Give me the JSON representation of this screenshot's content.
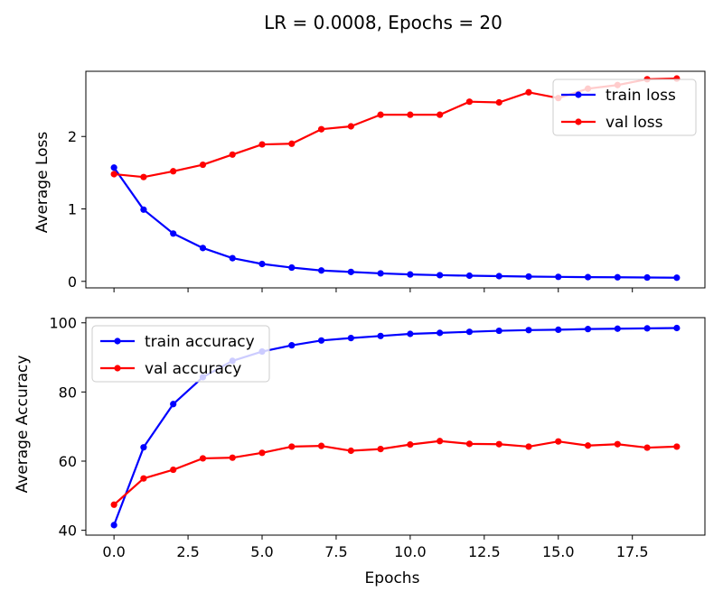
{
  "figure": {
    "title": "LR = 0.0008, Epochs = 20"
  },
  "chart_data": [
    {
      "type": "line",
      "title": "",
      "xlabel": "",
      "ylabel": "Average Loss",
      "xlim": [
        -0.95,
        19.95
      ],
      "ylim": [
        -0.09,
        2.9
      ],
      "x_ticks": [
        0.0,
        2.5,
        5.0,
        7.5,
        10.0,
        12.5,
        15.0,
        17.5
      ],
      "x_tick_labels_shown": false,
      "y_ticks": [
        0,
        1,
        2
      ],
      "y_tick_labels": [
        "0",
        "1",
        "2"
      ],
      "grid": false,
      "legend_position": "top-right",
      "x": [
        0,
        1,
        2,
        3,
        4,
        5,
        6,
        7,
        8,
        9,
        10,
        11,
        12,
        13,
        14,
        15,
        16,
        17,
        18,
        19
      ],
      "series": [
        {
          "name": "train loss",
          "color": "#0000ff",
          "values": [
            1.57,
            0.99,
            0.66,
            0.46,
            0.32,
            0.24,
            0.19,
            0.15,
            0.13,
            0.11,
            0.095,
            0.085,
            0.078,
            0.072,
            0.066,
            0.062,
            0.058,
            0.056,
            0.053,
            0.05
          ]
        },
        {
          "name": "val loss",
          "color": "#ff0000",
          "values": [
            1.48,
            1.44,
            1.52,
            1.61,
            1.75,
            1.89,
            1.9,
            2.1,
            2.14,
            2.3,
            2.3,
            2.3,
            2.48,
            2.47,
            2.61,
            2.53,
            2.66,
            2.71,
            2.79,
            2.8
          ]
        }
      ]
    },
    {
      "type": "line",
      "title": "",
      "xlabel": "Epochs",
      "ylabel": "Average Accuracy",
      "xlim": [
        -0.95,
        19.95
      ],
      "ylim": [
        38.6,
        101.5
      ],
      "x_ticks": [
        0.0,
        2.5,
        5.0,
        7.5,
        10.0,
        12.5,
        15.0,
        17.5
      ],
      "x_tick_labels": [
        "0.0",
        "2.5",
        "5.0",
        "7.5",
        "10.0",
        "12.5",
        "15.0",
        "17.5"
      ],
      "y_ticks": [
        40,
        60,
        80,
        100
      ],
      "y_tick_labels": [
        "40",
        "60",
        "80",
        "100"
      ],
      "grid": false,
      "legend_position": "top-left",
      "x": [
        0,
        1,
        2,
        3,
        4,
        5,
        6,
        7,
        8,
        9,
        10,
        11,
        12,
        13,
        14,
        15,
        16,
        17,
        18,
        19
      ],
      "series": [
        {
          "name": "train accuracy",
          "color": "#0000ff",
          "values": [
            41.5,
            64.0,
            76.5,
            84.3,
            89.0,
            91.7,
            93.5,
            94.9,
            95.6,
            96.2,
            96.8,
            97.1,
            97.4,
            97.7,
            97.9,
            98.0,
            98.2,
            98.3,
            98.4,
            98.5
          ]
        },
        {
          "name": "val accuracy",
          "color": "#ff0000",
          "values": [
            47.4,
            55.0,
            57.5,
            60.8,
            61.0,
            62.4,
            64.2,
            64.4,
            63.0,
            63.5,
            64.8,
            65.8,
            65.0,
            64.9,
            64.2,
            65.7,
            64.5,
            64.9,
            63.9,
            64.2
          ]
        }
      ]
    }
  ]
}
